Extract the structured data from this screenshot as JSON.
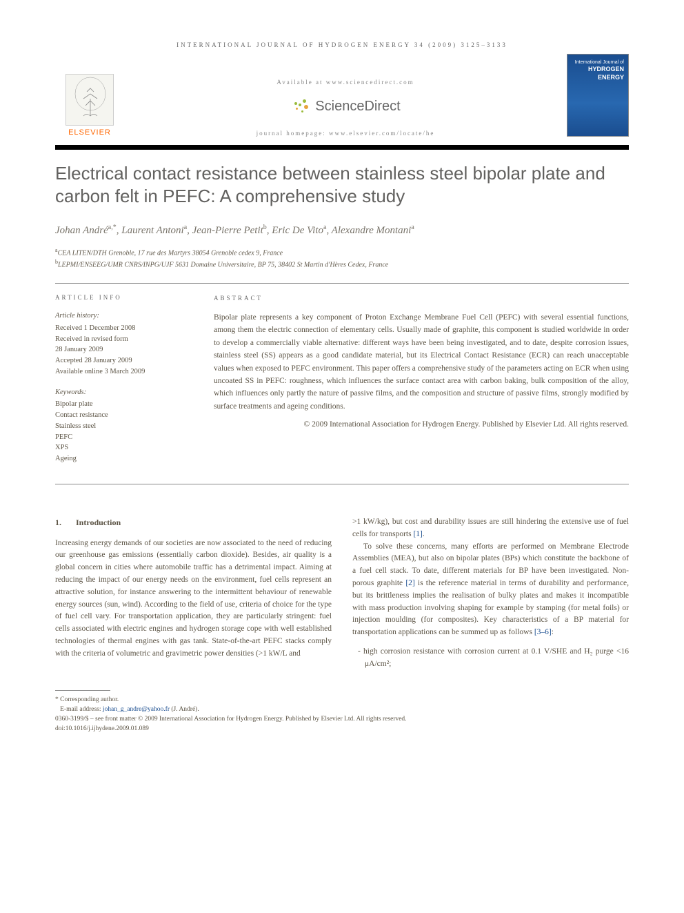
{
  "header": {
    "journal_ref": "INTERNATIONAL JOURNAL OF HYDROGEN ENERGY 34 (2009) 3125–3133",
    "available": "Available at www.sciencedirect.com",
    "sciencedirect": "ScienceDirect",
    "homepage": "journal homepage: www.elsevier.com/locate/he",
    "elsevier": "ELSEVIER",
    "cover_text": "HYDROGEN\nENERGY"
  },
  "title": "Electrical contact resistance between stainless steel bipolar plate and carbon felt in PEFC: A comprehensive study",
  "authors_html": "Johan André<sup>a,*</sup>, Laurent Antoni<sup>a</sup>, Jean-Pierre Petit<sup>b</sup>, Eric De Vito<sup>a</sup>, Alexandre Montani<sup>a</sup>",
  "affiliations": [
    "<sup>a</sup>CEA LITEN/DTH Grenoble, 17 rue des Martyrs 38054 Grenoble cedex 9, France",
    "<sup>b</sup>LEPMI/ENSEEG/UMR CNRS/INPG/UJF 5631 Domaine Universitaire, BP 75, 38402 St Martin d'Hères Cedex, France"
  ],
  "article_info": {
    "heading": "ARTICLE INFO",
    "history_label": "Article history:",
    "history": [
      "Received 1 December 2008",
      "Received in revised form",
      "28 January 2009",
      "Accepted 28 January 2009",
      "Available online 3 March 2009"
    ],
    "keywords_label": "Keywords:",
    "keywords": [
      "Bipolar plate",
      "Contact resistance",
      "Stainless steel",
      "PEFC",
      "XPS",
      "Ageing"
    ]
  },
  "abstract": {
    "heading": "ABSTRACT",
    "text": "Bipolar plate represents a key component of Proton Exchange Membrane Fuel Cell (PEFC) with several essential functions, among them the electric connection of elementary cells. Usually made of graphite, this component is studied worldwide in order to develop a commercially viable alternative: different ways have been being investigated, and to date, despite corrosion issues, stainless steel (SS) appears as a good candidate material, but its Electrical Contact Resistance (ECR) can reach unacceptable values when exposed to PEFC environment. This paper offers a comprehensive study of the parameters acting on ECR when using uncoated SS in PEFC: roughness, which influences the surface contact area with carbon baking, bulk composition of the alloy, which influences only partly the nature of passive films, and the composition and structure of passive films, strongly modified by surface treatments and ageing conditions.",
    "copyright": "© 2009 International Association for Hydrogen Energy. Published by Elsevier Ltd. All rights reserved."
  },
  "body": {
    "section_num": "1.",
    "section_title": "Introduction",
    "col1_p1": "Increasing energy demands of our societies are now associated to the need of reducing our greenhouse gas emissions (essentially carbon dioxide). Besides, air quality is a global concern in cities where automobile traffic has a detrimental impact. Aiming at reducing the impact of our energy needs on the environment, fuel cells represent an attractive solution, for instance answering to the intermittent behaviour of renewable energy sources (sun, wind). According to the field of use, criteria of choice for the type of fuel cell vary. For transportation application, they are particularly stringent: fuel cells associated with electric engines and hydrogen storage cope with well established technologies of thermal engines with gas tank. State-of-the-art PEFC stacks comply with the criteria of volumetric and gravimetric power densities (>1 kW/L and",
    "col2_p1_pre": ">1 kW/kg), but cost and durability issues are still hindering the extensive use of fuel cells for transports ",
    "col2_p1_ref": "[1]",
    "col2_p1_post": ".",
    "col2_p2_pre": "To solve these concerns, many efforts are performed on Membrane Electrode Assemblies (MEA), but also on bipolar plates (BPs) which constitute the backbone of a fuel cell stack. To date, different materials for BP have been investigated. Non-porous graphite ",
    "col2_p2_ref1": "[2]",
    "col2_p2_mid": " is the reference material in terms of durability and performance, but its brittleness implies the realisation of bulky plates and makes it incompatible with mass production involving shaping for example by stamping (for metal foils) or injection moulding (for composites). Key characteristics of a BP material for transportation applications can be summed up as follows ",
    "col2_p2_ref2": "[3–6]",
    "col2_p2_post": ":",
    "bullet1": "- high corrosion resistance with corrosion current at 0.1 V/SHE and H₂ purge <16 μA/cm²;"
  },
  "footer": {
    "corresponding": "* Corresponding author.",
    "email_label": "E-mail address: ",
    "email": "johan_g_andre@yahoo.fr",
    "email_post": " (J. André).",
    "line1": "0360-3199/$ – see front matter © 2009 International Association for Hydrogen Energy. Published by Elsevier Ltd. All rights reserved.",
    "doi": "doi:10.1016/j.ijhydene.2009.01.089"
  },
  "colors": {
    "elsevier_orange": "#ff6600",
    "sd_green": "#9bbb3c",
    "sd_orange": "#e8a33d",
    "link_blue": "#1a4d8f",
    "text": "#5b5344",
    "title_gray": "#62615f"
  }
}
